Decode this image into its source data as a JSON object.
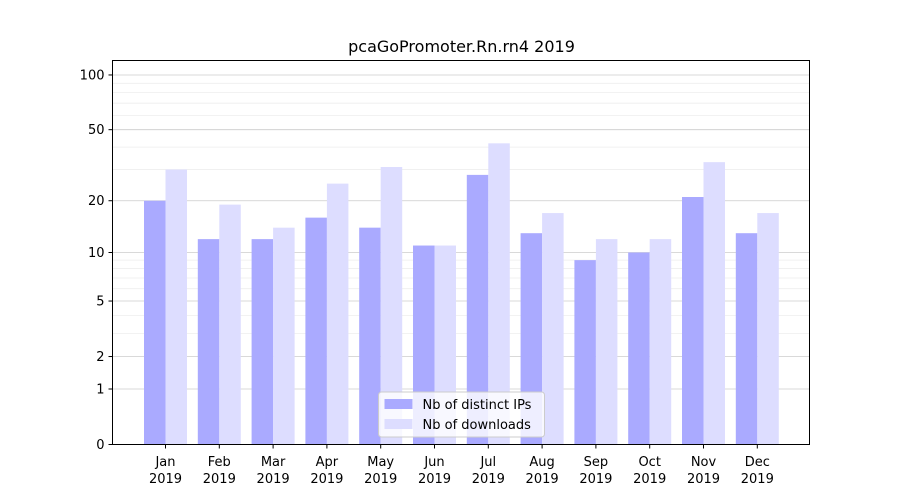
{
  "chart_data": {
    "type": "bar",
    "title": "pcaGoPromoter.Rn.rn4 2019",
    "xlabel": "",
    "ylabel": "",
    "y_scale": "log(1+y)",
    "ylim": [
      0,
      120
    ],
    "y_ticks": [
      0,
      1,
      2,
      5,
      10,
      20,
      50,
      100
    ],
    "y_tick_labels": [
      "0",
      "1",
      "2",
      "5",
      "10",
      "20",
      "50",
      "100"
    ],
    "grid": true,
    "legend_position": "bottom-center",
    "categories": [
      "Jan\n2019",
      "Feb\n2019",
      "Mar\n2019",
      "Apr\n2019",
      "May\n2019",
      "Jun\n2019",
      "Jul\n2019",
      "Aug\n2019",
      "Sep\n2019",
      "Oct\n2019",
      "Nov\n2019",
      "Dec\n2019"
    ],
    "category_lines": [
      [
        "Jan",
        "2019"
      ],
      [
        "Feb",
        "2019"
      ],
      [
        "Mar",
        "2019"
      ],
      [
        "Apr",
        "2019"
      ],
      [
        "May",
        "2019"
      ],
      [
        "Jun",
        "2019"
      ],
      [
        "Jul",
        "2019"
      ],
      [
        "Aug",
        "2019"
      ],
      [
        "Sep",
        "2019"
      ],
      [
        "Oct",
        "2019"
      ],
      [
        "Nov",
        "2019"
      ],
      [
        "Dec",
        "2019"
      ]
    ],
    "series": [
      {
        "name": "Nb of distinct IPs",
        "color": "#aaaaff",
        "values": [
          20,
          12,
          12,
          16,
          14,
          11,
          28,
          13,
          9,
          10,
          21,
          13
        ]
      },
      {
        "name": "Nb of downloads",
        "color": "#ddddff",
        "values": [
          30,
          19,
          14,
          25,
          31,
          11,
          42,
          17,
          12,
          12,
          33,
          17
        ]
      }
    ]
  }
}
